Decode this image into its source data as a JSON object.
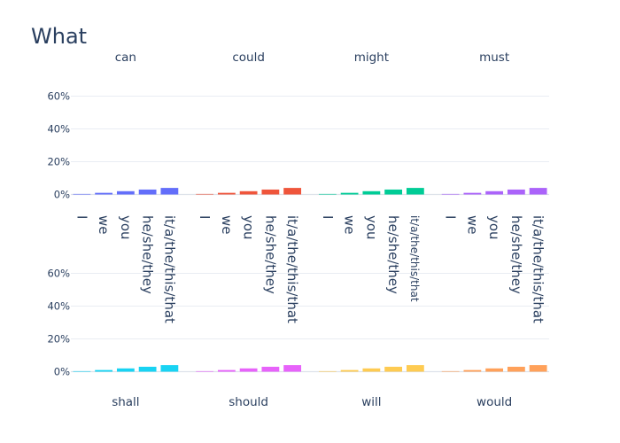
{
  "chart_data": {
    "type": "bar",
    "title": "What",
    "categories": [
      "I",
      "we",
      "you",
      "he/she/they",
      "it/a/the/this/that"
    ],
    "y_tick_labels": [
      "0%",
      "20%",
      "40%",
      "60%"
    ],
    "ylim": [
      0,
      0.65
    ],
    "grid": true,
    "legend": "none",
    "facets": [
      {
        "name": "can",
        "color": "#636efa",
        "values": [
          0.001,
          0.01,
          0.02,
          0.03,
          0.04
        ]
      },
      {
        "name": "could",
        "color": "#ef553b",
        "values": [
          0.001,
          0.01,
          0.02,
          0.03,
          0.04
        ]
      },
      {
        "name": "might",
        "color": "#00cc96",
        "values": [
          0.001,
          0.01,
          0.02,
          0.03,
          0.04
        ]
      },
      {
        "name": "must",
        "color": "#ab63fa",
        "values": [
          0.001,
          0.01,
          0.02,
          0.03,
          0.04
        ]
      },
      {
        "name": "shall",
        "color": "#19d3f3",
        "values": [
          0.001,
          0.01,
          0.02,
          0.03,
          0.04
        ]
      },
      {
        "name": "should",
        "color": "#e763fa",
        "values": [
          0.001,
          0.01,
          0.02,
          0.03,
          0.04
        ]
      },
      {
        "name": "will",
        "color": "#fecb52",
        "values": [
          0.001,
          0.01,
          0.02,
          0.03,
          0.04
        ]
      },
      {
        "name": "would",
        "color": "#ffa15a",
        "values": [
          0.001,
          0.01,
          0.02,
          0.03,
          0.04
        ]
      }
    ]
  }
}
